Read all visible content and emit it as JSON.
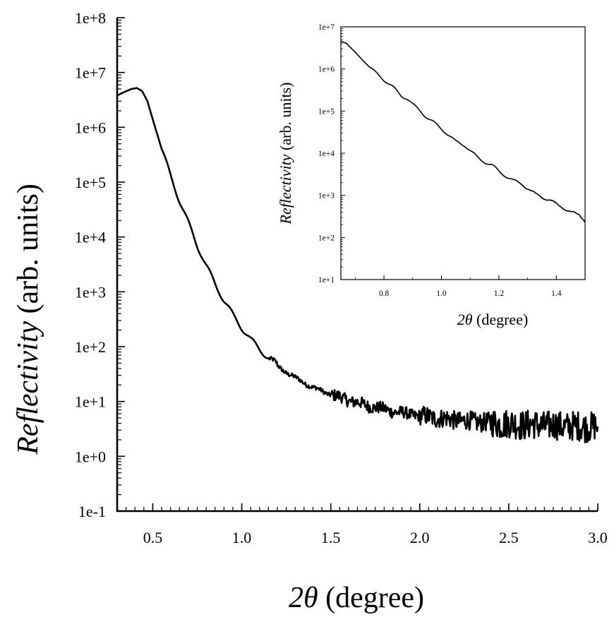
{
  "chart_data": [
    {
      "type": "line",
      "title": "",
      "xlabel": {
        "symbol": "2θ",
        "text": " (degree)"
      },
      "ylabel": {
        "italic": "Reflectivity",
        "text": " (arb. units)"
      },
      "xlim": [
        0.3,
        3.0
      ],
      "ylim": [
        0.1,
        100000000
      ],
      "yscale": "log",
      "grid": false,
      "legend": "none",
      "x_ticks": [
        "0.5",
        "1.0",
        "1.5",
        "2.0",
        "2.5",
        "3.0"
      ],
      "y_ticks": [
        "1e-1",
        "1e+0",
        "1e+1",
        "1e+2",
        "1e+3",
        "1e+4",
        "1e+5",
        "1e+6",
        "1e+7",
        "1e+8"
      ],
      "series": [
        {
          "color": "#000000",
          "points": [
            [
              0.3,
              3800000.0
            ],
            [
              0.34,
              4400000.0
            ],
            [
              0.38,
              5000000.0
            ],
            [
              0.41,
              5200000.0
            ],
            [
              0.44,
              4600000.0
            ],
            [
              0.47,
              3000000.0
            ],
            [
              0.5,
              1400000.0
            ],
            [
              0.55,
              400000.0
            ],
            [
              0.6,
              130000.0
            ],
            [
              0.65,
              46000.0
            ],
            [
              0.7,
              18000.0
            ],
            [
              0.75,
              7000.0
            ],
            [
              0.8,
              3000.0
            ],
            [
              0.85,
              1400.0
            ],
            [
              0.9,
              700.0
            ],
            [
              0.95,
              380.0
            ],
            [
              1.0,
              220.0
            ],
            [
              1.05,
              135.0
            ],
            [
              1.1,
              90.0
            ],
            [
              1.15,
              62.0
            ],
            [
              1.2,
              45.0
            ],
            [
              1.25,
              34.0
            ],
            [
              1.3,
              27.0
            ],
            [
              1.35,
              22.0
            ],
            [
              1.4,
              18.0
            ],
            [
              1.45,
              15.5
            ],
            [
              1.5,
              13.5
            ],
            [
              1.55,
              12.0
            ],
            [
              1.6,
              10.5
            ],
            [
              1.65,
              9.5
            ],
            [
              1.7,
              8.5
            ],
            [
              1.75,
              7.8
            ],
            [
              1.8,
              7.2
            ],
            [
              1.85,
              6.6
            ],
            [
              1.9,
              6.2
            ],
            [
              1.95,
              5.8
            ],
            [
              2.0,
              5.5
            ],
            [
              2.05,
              5.2
            ],
            [
              2.1,
              5.0
            ],
            [
              2.15,
              4.8
            ],
            [
              2.2,
              4.6
            ],
            [
              2.25,
              4.4
            ],
            [
              2.3,
              4.3
            ],
            [
              2.35,
              4.2
            ],
            [
              2.4,
              4.1
            ],
            [
              2.45,
              4.0
            ],
            [
              2.5,
              3.9
            ],
            [
              2.55,
              3.8
            ],
            [
              2.6,
              3.8
            ],
            [
              2.65,
              3.7
            ],
            [
              2.7,
              3.7
            ],
            [
              2.75,
              3.6
            ],
            [
              2.8,
              3.6
            ],
            [
              2.85,
              3.5
            ],
            [
              2.9,
              3.5
            ],
            [
              2.95,
              3.5
            ],
            [
              3.0,
              3.5
            ]
          ]
        }
      ]
    },
    {
      "type": "line",
      "title": "",
      "xlabel": {
        "symbol": "2θ",
        "text": " (degree)"
      },
      "ylabel": {
        "italic": "Reflectivity",
        "text": " (arb. units)"
      },
      "xlim": [
        0.65,
        1.5
      ],
      "ylim": [
        10,
        10000000
      ],
      "yscale": "log",
      "grid": false,
      "legend": "none",
      "x_ticks": [
        "0.8",
        "1.0",
        "1.2",
        "1.4"
      ],
      "y_ticks": [
        "1e+1",
        "1e+2",
        "1e+3",
        "1e+4",
        "1e+5",
        "1e+6",
        "1e+7"
      ],
      "series": [
        {
          "color": "#000000",
          "points": [
            [
              0.65,
              4600000.0
            ],
            [
              0.67,
              4000000.0
            ],
            [
              0.7,
              2500000.0
            ],
            [
              0.73,
              1500000.0
            ],
            [
              0.76,
              950000.0
            ],
            [
              0.8,
              550000.0
            ],
            [
              0.83,
              380000.0
            ],
            [
              0.86,
              230000.0
            ],
            [
              0.88,
              200000.0
            ],
            [
              0.9,
              145000.0
            ],
            [
              0.93,
              95000.0
            ],
            [
              0.95,
              70000.0
            ],
            [
              0.97,
              56000.0
            ],
            [
              1.0,
              38000.0
            ],
            [
              1.03,
              25000.0
            ],
            [
              1.05,
              19000.0
            ],
            [
              1.08,
              15500.0
            ],
            [
              1.1,
              11500.0
            ],
            [
              1.13,
              7500.0
            ],
            [
              1.15,
              6200.0
            ],
            [
              1.18,
              5000.0
            ],
            [
              1.2,
              3700.0
            ],
            [
              1.23,
              2700.0
            ],
            [
              1.25,
              2250.0
            ],
            [
              1.28,
              1850.0
            ],
            [
              1.3,
              1450.0
            ],
            [
              1.33,
              1050.0
            ],
            [
              1.35,
              900.0
            ],
            [
              1.38,
              760.0
            ],
            [
              1.4,
              610.0
            ],
            [
              1.43,
              480.0
            ],
            [
              1.45,
              410.0
            ],
            [
              1.48,
              330.0
            ],
            [
              1.5,
              250.0
            ]
          ]
        }
      ]
    }
  ]
}
